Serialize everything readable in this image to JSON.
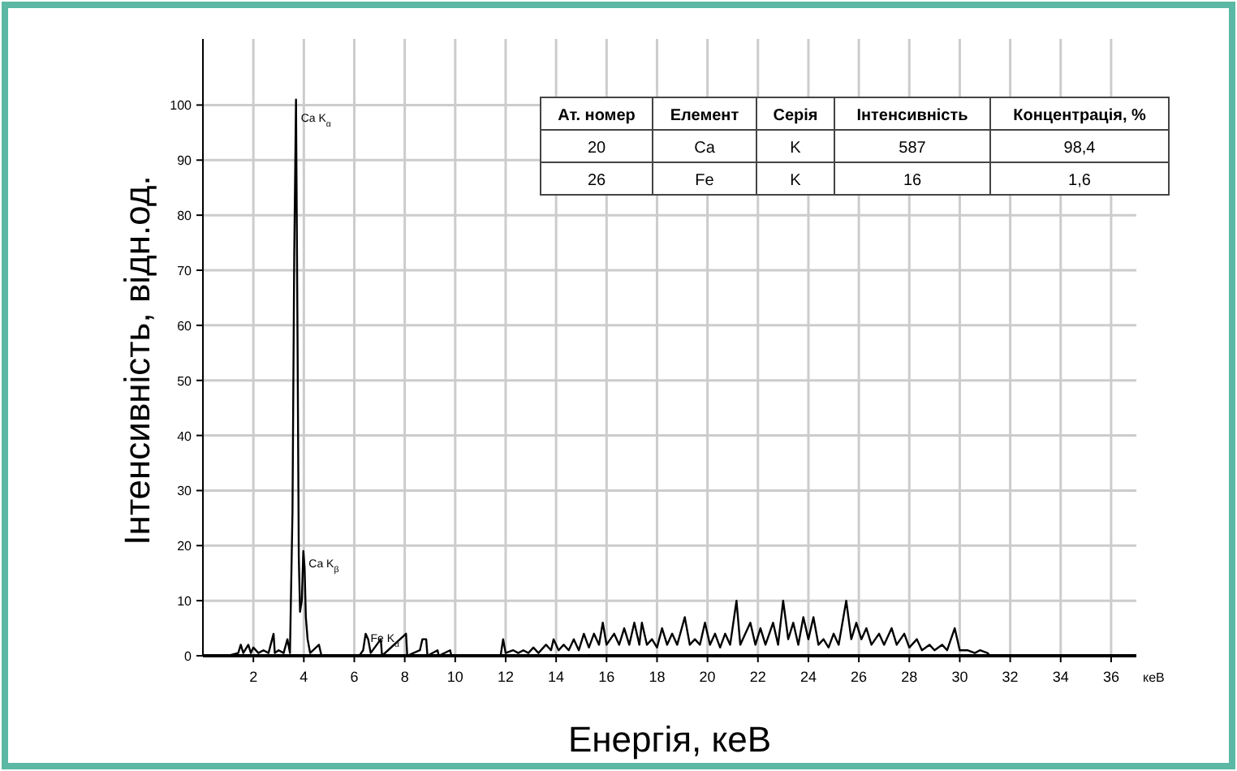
{
  "chart_data": [
    {
      "type": "line",
      "xlabel": "Енергія, кеВ",
      "ylabel": "Інтенсивність, відн.од.",
      "xlim": [
        0,
        37
      ],
      "ylim": [
        0,
        112
      ],
      "xticks": [
        2,
        4,
        6,
        8,
        10,
        12,
        14,
        16,
        18,
        20,
        22,
        24,
        26,
        28,
        30,
        32,
        34,
        36
      ],
      "yticks": [
        0,
        10,
        20,
        30,
        40,
        50,
        60,
        70,
        80,
        90,
        100
      ],
      "grid": true,
      "marker": "none",
      "line_style": "solid",
      "annotations": [
        "кеВ",
        {
          "text": "Ca K$_{α}$",
          "x": 3.69,
          "y": 97
        },
        {
          "text": "Ca K$_{β}$",
          "x": 4.0,
          "y": 16
        },
        {
          "text": "Fe K$_{α}$",
          "x": 6.45,
          "y": 2.5
        }
      ],
      "series": [
        {
          "color": "#000000",
          "x": [
            1.0,
            1.4,
            1.5,
            1.6,
            1.8,
            1.9,
            2.0,
            2.2,
            2.4,
            2.6,
            2.8,
            2.85,
            3.0,
            3.2,
            3.35,
            3.45,
            3.55,
            3.62,
            3.69,
            3.75,
            3.8,
            3.85,
            3.92,
            3.98,
            4.03,
            4.08,
            4.15,
            4.25,
            4.6,
            4.7,
            6.2,
            6.35,
            6.45,
            6.55,
            6.65,
            7.05,
            7.1,
            8.05,
            8.1,
            8.6,
            8.7,
            8.85,
            8.9,
            9.3,
            9.35,
            9.8,
            9.85,
            11.8,
            11.9,
            12.0,
            12.3,
            12.5,
            12.7,
            12.9,
            13.1,
            13.3,
            13.6,
            13.8,
            13.9,
            14.1,
            14.3,
            14.5,
            14.7,
            14.9,
            15.1,
            15.3,
            15.5,
            15.7,
            15.85,
            16.0,
            16.3,
            16.5,
            16.7,
            16.9,
            17.1,
            17.3,
            17.4,
            17.6,
            17.8,
            18.0,
            18.2,
            18.4,
            18.6,
            18.8,
            19.1,
            19.3,
            19.5,
            19.7,
            19.9,
            20.1,
            20.3,
            20.5,
            20.7,
            20.9,
            21.15,
            21.3,
            21.5,
            21.7,
            21.9,
            22.1,
            22.3,
            22.6,
            22.8,
            23.0,
            23.2,
            23.4,
            23.6,
            23.8,
            24.0,
            24.2,
            24.4,
            24.6,
            24.8,
            25.0,
            25.2,
            25.5,
            25.7,
            25.9,
            26.1,
            26.3,
            26.5,
            26.8,
            27.0,
            27.3,
            27.5,
            27.8,
            28.0,
            28.3,
            28.5,
            28.8,
            29.0,
            29.3,
            29.5,
            29.8,
            30.0,
            30.3,
            30.6,
            30.8,
            31.1,
            31.2
          ],
          "values": [
            0,
            0.5,
            2,
            0.5,
            2,
            0.5,
            1.5,
            0.5,
            1,
            0.5,
            4,
            0.5,
            1,
            0.5,
            3,
            0.5,
            26,
            73,
            101,
            58,
            18,
            8,
            10,
            19,
            16,
            7,
            3,
            0.5,
            2,
            0,
            0,
            1,
            4,
            3,
            0.5,
            3,
            0,
            4,
            0,
            1,
            3,
            3,
            0,
            1,
            0,
            1,
            0,
            0,
            3,
            0.5,
            1,
            0.5,
            1,
            0.5,
            1.5,
            0.5,
            2,
            1,
            3,
            1,
            2,
            1,
            3,
            1,
            4,
            1.5,
            4,
            2,
            6,
            2,
            4,
            2,
            5,
            2,
            6,
            2,
            6,
            2,
            3,
            1.5,
            5,
            2,
            4,
            2,
            7,
            2,
            3,
            2,
            6,
            2,
            4,
            1.5,
            4,
            2,
            10,
            2,
            4,
            6,
            2,
            5,
            2,
            6,
            2,
            10,
            3,
            6,
            2,
            7,
            3,
            7,
            2,
            3,
            1.5,
            4,
            2,
            10,
            3,
            6,
            3,
            5,
            2,
            4,
            2,
            5,
            2,
            4,
            1.5,
            3,
            1,
            2,
            1,
            2,
            1,
            5,
            1,
            1,
            0.5,
            1,
            0.5,
            0
          ]
        }
      ]
    },
    {
      "type": "other",
      "categories": [
        "Ат. номер",
        "Елемент",
        "Серія",
        "Інтенсивність",
        "Концентрація, %"
      ],
      "cell_labels": [
        [
          "20",
          "Ca",
          "K",
          "587",
          "98,4"
        ],
        [
          "26",
          "Fe",
          "K",
          "16",
          "1,6"
        ]
      ]
    }
  ]
}
